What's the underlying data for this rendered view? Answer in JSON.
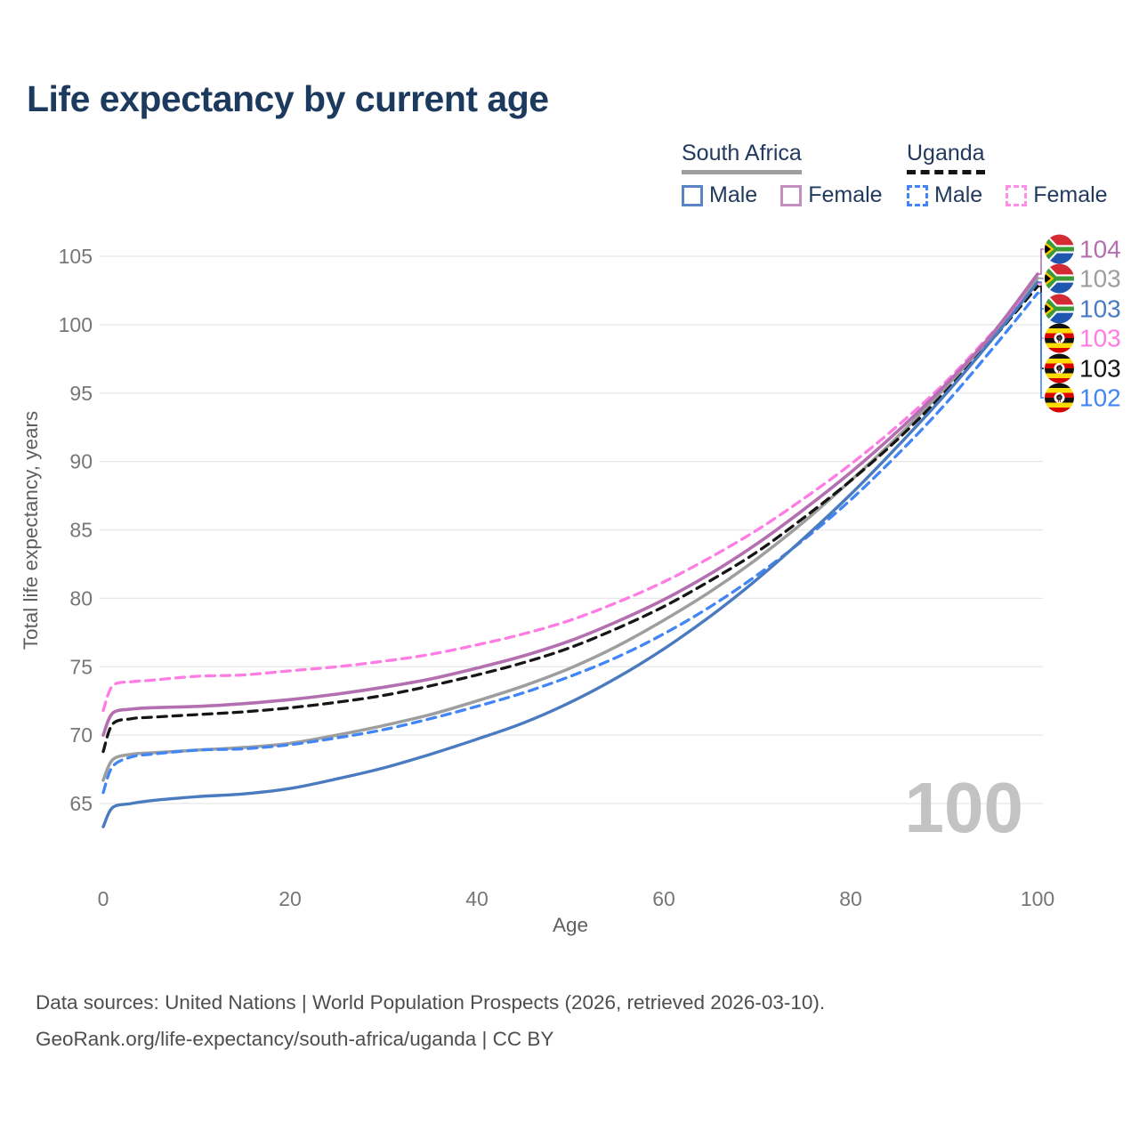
{
  "watermark": "100",
  "footer": {
    "line1": "Data sources: United Nations | World Population Prospects (2026, retrieved 2026-03-10).",
    "line2": "GeoRank.org/life-expectancy/south-africa/uganda | CC BY"
  },
  "legend": {
    "groups": [
      {
        "country": "South Africa",
        "line_color": "#9e9e9e",
        "line_style": "solid",
        "items": [
          {
            "label": "Male",
            "swatch_color": "#5b84c4"
          },
          {
            "label": "Female",
            "swatch_color": "#c58fc2"
          }
        ]
      },
      {
        "country": "Uganda",
        "line_color": "#141414",
        "line_style": "dashed",
        "items": [
          {
            "label": "Male",
            "swatch_color": "#4285f4"
          },
          {
            "label": "Female",
            "swatch_color": "#ff8fe6"
          }
        ]
      }
    ]
  },
  "chart_data": {
    "type": "line",
    "title": "Life expectancy by current age",
    "xlabel": "Age",
    "ylabel": "Total life expectancy, years",
    "xlim": [
      0,
      100
    ],
    "ylim": [
      63,
      105
    ],
    "x_ticks": [
      0,
      20,
      40,
      60,
      80,
      100
    ],
    "y_ticks": [
      65,
      70,
      75,
      80,
      85,
      90,
      95,
      100,
      105
    ],
    "grid": "horizontal",
    "legend_position": "top-right",
    "x": [
      0,
      1,
      3,
      5,
      10,
      15,
      20,
      25,
      30,
      35,
      40,
      45,
      50,
      55,
      60,
      65,
      70,
      75,
      80,
      85,
      90,
      95,
      100
    ],
    "series": [
      {
        "id": "sa-total",
        "name": "South Africa Total",
        "country": "South Africa",
        "sex": "total",
        "color": "#9e9e9e",
        "dashed": false,
        "width": 3.5,
        "flag": "za",
        "end_label": "103",
        "values": [
          66.7,
          68.2,
          68.6,
          68.7,
          68.9,
          69.1,
          69.4,
          70.0,
          70.7,
          71.5,
          72.5,
          73.6,
          74.9,
          76.5,
          78.4,
          80.5,
          82.9,
          85.6,
          88.6,
          91.8,
          95.3,
          99.1,
          103.4
        ]
      },
      {
        "id": "ug-female",
        "name": "Uganda Female",
        "country": "Uganda",
        "sex": "female",
        "color": "#ff7ce4",
        "dashed": true,
        "width": 3.3,
        "flag": "ug",
        "end_label": "103",
        "values": [
          71.8,
          73.6,
          73.9,
          74.0,
          74.3,
          74.4,
          74.7,
          75.0,
          75.4,
          75.9,
          76.6,
          77.4,
          78.4,
          79.7,
          81.2,
          83.0,
          85.0,
          87.3,
          89.8,
          92.6,
          95.7,
          99.3,
          103.0
        ]
      },
      {
        "id": "ug-total",
        "name": "Uganda Total",
        "country": "Uganda",
        "sex": "total",
        "color": "#161616",
        "dashed": true,
        "width": 3.3,
        "flag": "ug",
        "end_label": "103",
        "values": [
          68.8,
          70.8,
          71.2,
          71.3,
          71.5,
          71.7,
          72.0,
          72.4,
          72.9,
          73.6,
          74.4,
          75.3,
          76.4,
          77.8,
          79.4,
          81.3,
          83.4,
          85.9,
          88.6,
          91.6,
          95.0,
          98.8,
          102.8
        ]
      },
      {
        "id": "ug-male",
        "name": "Uganda Male",
        "country": "Uganda",
        "sex": "male",
        "color": "#4285f4",
        "dashed": true,
        "width": 3.3,
        "flag": "ug",
        "end_label": "102",
        "values": [
          65.8,
          67.7,
          68.4,
          68.6,
          68.9,
          69.0,
          69.3,
          69.8,
          70.4,
          71.2,
          72.1,
          73.1,
          74.3,
          75.7,
          77.4,
          79.4,
          81.7,
          84.3,
          87.2,
          90.5,
          94.1,
          98.1,
          102.3
        ]
      },
      {
        "id": "sa-male",
        "name": "South Africa Male",
        "country": "South Africa",
        "sex": "male",
        "color": "#4a7bc0",
        "dashed": false,
        "width": 3.4,
        "flag": "za",
        "end_label": "103",
        "values": [
          63.3,
          64.7,
          65.0,
          65.2,
          65.5,
          65.7,
          66.1,
          66.8,
          67.6,
          68.6,
          69.7,
          70.9,
          72.4,
          74.2,
          76.3,
          78.7,
          81.4,
          84.4,
          87.6,
          91.1,
          94.8,
          98.8,
          103.1
        ]
      },
      {
        "id": "sa-female",
        "name": "South Africa Female",
        "country": "South Africa",
        "sex": "female",
        "color": "#b36fb0",
        "dashed": false,
        "width": 3.6,
        "flag": "za",
        "end_label": "104",
        "values": [
          70.0,
          71.6,
          71.9,
          72.0,
          72.1,
          72.3,
          72.6,
          73.0,
          73.5,
          74.1,
          74.9,
          75.8,
          76.9,
          78.3,
          79.9,
          81.8,
          84.0,
          86.5,
          89.2,
          92.2,
          95.5,
          99.2,
          103.7
        ]
      }
    ],
    "end_label_order": [
      "sa-female",
      "sa-total",
      "sa-male",
      "ug-female",
      "ug-total",
      "ug-male"
    ]
  }
}
